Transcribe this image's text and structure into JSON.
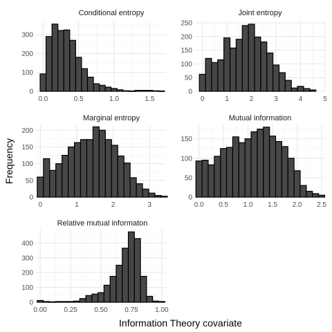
{
  "figure": {
    "ylabel": "Frequency",
    "xlabel": "Information Theory covariate"
  },
  "colors": {
    "bar_fill": "#474747",
    "bar_outline": "#000000",
    "grid": "#e6e6e6",
    "background": "#ffffff"
  },
  "chart_data": [
    {
      "type": "bar",
      "title": "Conditional entropy",
      "xlim": [
        -0.1,
        1.73
      ],
      "ylim": [
        0,
        370
      ],
      "xticks": [
        0.0,
        0.5,
        1.0,
        1.5
      ],
      "xtick_labels": [
        "0.0",
        "0.5",
        "1.0",
        "1.5"
      ],
      "yticks": [
        0,
        100,
        200,
        300
      ],
      "ytick_labels": [
        "0",
        "100",
        "200",
        "300"
      ],
      "bin_width": 0.083,
      "bin_centers": [
        0.0,
        0.083,
        0.167,
        0.25,
        0.333,
        0.417,
        0.5,
        0.583,
        0.667,
        0.75,
        0.833,
        0.917,
        1.0,
        1.083,
        1.167,
        1.25,
        1.333,
        1.417,
        1.5,
        1.583,
        1.667
      ],
      "values": [
        92,
        290,
        356,
        322,
        325,
        270,
        180,
        120,
        75,
        40,
        32,
        22,
        15,
        8,
        3,
        2,
        5,
        5,
        5,
        3,
        2
      ]
    },
    {
      "type": "bar",
      "title": "Joint entropy",
      "xlim": [
        -0.3,
        5.0
      ],
      "ylim": [
        0,
        255
      ],
      "xticks": [
        0,
        1,
        2,
        3,
        4,
        5
      ],
      "xtick_labels": [
        "0",
        "1",
        "2",
        "3",
        "4",
        "5"
      ],
      "yticks": [
        0,
        50,
        100,
        150,
        200,
        250
      ],
      "ytick_labels": [
        "0",
        "50",
        "100",
        "150",
        "200",
        "250"
      ],
      "bin_width": 0.25,
      "bin_centers": [
        0.0,
        0.25,
        0.5,
        0.75,
        1.0,
        1.25,
        1.5,
        1.75,
        2.0,
        2.25,
        2.5,
        2.75,
        3.0,
        3.25,
        3.5,
        3.75,
        4.0,
        4.25,
        4.5
      ],
      "values": [
        62,
        120,
        105,
        115,
        195,
        158,
        190,
        240,
        245,
        198,
        180,
        140,
        96,
        68,
        40,
        12,
        18,
        10,
        5
      ]
    },
    {
      "type": "bar",
      "title": "Marginal entropy",
      "xlim": [
        -0.12,
        3.45
      ],
      "ylim": [
        0,
        215
      ],
      "xticks": [
        0,
        1,
        2,
        3
      ],
      "xtick_labels": [
        "0",
        "1",
        "2",
        "3"
      ],
      "yticks": [
        0,
        50,
        100,
        150,
        200
      ],
      "ytick_labels": [
        "0",
        "50",
        "100",
        "150",
        "200"
      ],
      "bin_width": 0.17,
      "bin_centers": [
        0.0,
        0.17,
        0.34,
        0.51,
        0.68,
        0.85,
        1.02,
        1.19,
        1.36,
        1.53,
        1.7,
        1.87,
        2.04,
        2.21,
        2.38,
        2.55,
        2.72,
        2.89,
        3.06,
        3.23,
        3.4
      ],
      "values": [
        60,
        115,
        80,
        100,
        125,
        150,
        163,
        172,
        172,
        210,
        200,
        172,
        155,
        123,
        102,
        58,
        40,
        24,
        12,
        5,
        3
      ]
    },
    {
      "type": "bar",
      "title": "Mutual information",
      "xlim": [
        -0.08,
        2.57
      ],
      "ylim": [
        0,
        185
      ],
      "xticks": [
        0.0,
        0.5,
        1.0,
        1.5,
        2.0,
        2.5
      ],
      "xtick_labels": [
        "0.0",
        "0.5",
        "1.0",
        "1.5",
        "2.0",
        "2.5"
      ],
      "yticks": [
        0,
        50,
        100,
        150
      ],
      "ytick_labels": [
        "0",
        "50",
        "100",
        "150"
      ],
      "bin_width": 0.125,
      "bin_centers": [
        0.0,
        0.125,
        0.25,
        0.375,
        0.5,
        0.625,
        0.75,
        0.875,
        1.0,
        1.125,
        1.25,
        1.375,
        1.5,
        1.625,
        1.75,
        1.875,
        2.0,
        2.125,
        2.25,
        2.375,
        2.5
      ],
      "values": [
        93,
        95,
        83,
        105,
        125,
        128,
        155,
        140,
        150,
        168,
        175,
        180,
        157,
        143,
        130,
        100,
        68,
        30,
        15,
        9,
        5
      ]
    },
    {
      "type": "bar",
      "title": "Relative mutual informaton",
      "xlim": [
        -0.035,
        1.035
      ],
      "ylim": [
        0,
        495
      ],
      "xticks": [
        0.0,
        0.25,
        0.5,
        0.75,
        1.0
      ],
      "xtick_labels": [
        "0.00",
        "0.25",
        "0.50",
        "0.75",
        "1.00"
      ],
      "yticks": [
        0,
        100,
        200,
        300,
        400
      ],
      "ytick_labels": [
        "0",
        "100",
        "200",
        "300",
        "400"
      ],
      "bin_width": 0.05,
      "bin_centers": [
        0.0,
        0.05,
        0.1,
        0.15,
        0.2,
        0.25,
        0.3,
        0.35,
        0.4,
        0.45,
        0.5,
        0.55,
        0.6,
        0.65,
        0.7,
        0.75,
        0.8,
        0.85,
        0.9,
        0.95,
        1.0
      ],
      "values": [
        12,
        5,
        3,
        5,
        5,
        5,
        8,
        25,
        45,
        55,
        65,
        115,
        175,
        250,
        365,
        475,
        430,
        175,
        40,
        8,
        5
      ]
    }
  ]
}
